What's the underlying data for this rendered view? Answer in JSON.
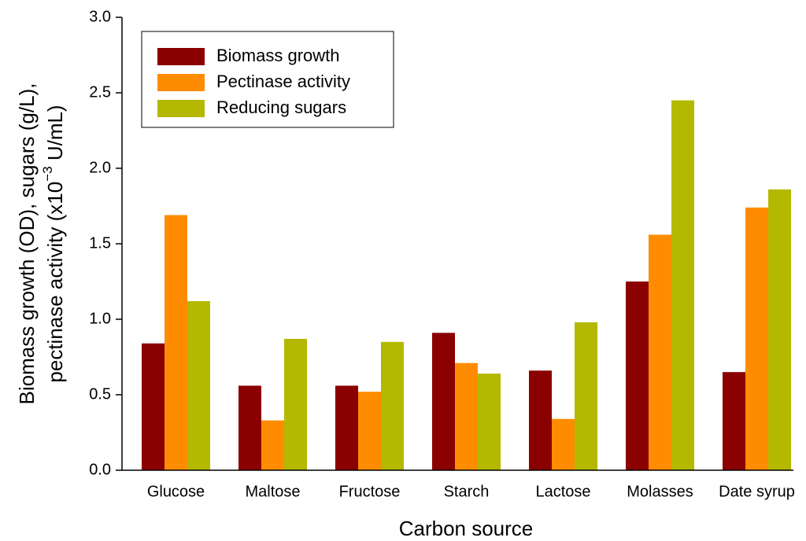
{
  "chart_data": {
    "type": "bar",
    "x_label": "Carbon source",
    "y_label": {
      "line1": "Biomass growth (OD), sugars (g/L),",
      "line2_start": "pectinase activity (x10",
      "line2_sup": "−3",
      "line2_end": " U/mL)"
    },
    "categories": [
      "Glucose",
      "Maltose",
      "Fructose",
      "Starch",
      "Lactose",
      "Molasses",
      "Date syrup"
    ],
    "series": [
      {
        "name": "Biomass growth",
        "color": "#8B0000",
        "values": [
          0.84,
          0.56,
          0.56,
          0.91,
          0.66,
          1.25,
          0.65
        ]
      },
      {
        "name": "Pectinase activity",
        "color": "#FF8C00",
        "values": [
          1.69,
          0.33,
          0.52,
          0.71,
          0.34,
          1.56,
          1.74
        ]
      },
      {
        "name": "Reducing sugars",
        "color": "#B5B800",
        "values": [
          1.12,
          0.87,
          0.85,
          0.64,
          0.98,
          2.45,
          1.86
        ]
      }
    ],
    "ylim": [
      0,
      3
    ],
    "yticks": [
      {
        "value": 0,
        "label": "0.0"
      },
      0.5,
      {
        "value": 1,
        "label": "1.0"
      },
      1.5,
      {
        "value": 2,
        "label": "2.0"
      },
      2.5,
      {
        "value": 3,
        "label": "3.0"
      }
    ],
    "legend": "upper left",
    "grid": false
  }
}
